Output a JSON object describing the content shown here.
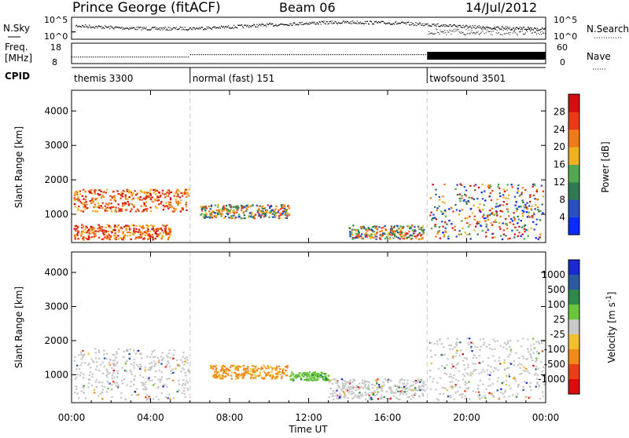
{
  "header": {
    "station": "Prince George (fitACF)",
    "beam": "Beam 06",
    "date": "14/Jul/2012"
  },
  "panels": {
    "nsky": {
      "label": "N.Sky",
      "right_label": "N.Search",
      "ticks_left": [
        "10^5",
        "10^0"
      ],
      "ticks_right": [
        "10^5",
        "10^0"
      ]
    },
    "freq": {
      "label": "Freq.",
      "unit": "[MHz]",
      "right_label": "Nave",
      "ticks_left": [
        "18",
        "8"
      ],
      "ticks_right": [
        "60",
        "0"
      ]
    },
    "cpid": {
      "label": "CPID",
      "modes": [
        {
          "name": "themis 3300",
          "start_hour": 0,
          "end_hour": 6
        },
        {
          "name": "normal (fast) 151",
          "start_hour": 6,
          "end_hour": 18
        },
        {
          "name": "twofsound 3501",
          "start_hour": 18,
          "end_hour": 24
        }
      ]
    }
  },
  "chart_data": [
    {
      "type": "heatmap",
      "title": "",
      "ylabel": "Slant Range [km]",
      "ylim": [
        180,
        4600
      ],
      "yticks": [
        1000,
        2000,
        3000,
        4000
      ],
      "xlabel": "Time UT",
      "xlim_hours": [
        0,
        24
      ],
      "xtick_labels": [
        "00:00",
        "04:00",
        "08:00",
        "12:00",
        "16:00",
        "20:00",
        "00:00"
      ],
      "colorbar": {
        "label": "Power [dB]",
        "ticks": [
          4,
          8,
          12,
          16,
          20,
          24,
          28
        ],
        "colors": [
          "#0a2cff",
          "#2a4fc4",
          "#2f7a52",
          "#52a84e",
          "#f0b020",
          "#f07a18",
          "#e83a14",
          "#d01010"
        ]
      },
      "regions": [
        {
          "t0": 0.1,
          "t1": 5.9,
          "r0": 1100,
          "r1": 1750,
          "level": "high"
        },
        {
          "t0": 0.1,
          "t1": 5.0,
          "r0": 280,
          "r1": 720,
          "level": "high"
        },
        {
          "t0": 6.5,
          "t1": 11.0,
          "r0": 900,
          "r1": 1300,
          "level": "mid"
        },
        {
          "t0": 14.0,
          "t1": 17.8,
          "r0": 300,
          "r1": 700,
          "level": "mid"
        },
        {
          "t0": 18.1,
          "t1": 23.9,
          "r0": 300,
          "r1": 1900,
          "level": "mixed"
        }
      ]
    },
    {
      "type": "heatmap",
      "title": "",
      "ylabel": "Slant Range [km]",
      "ylim": [
        180,
        4600
      ],
      "yticks": [
        1000,
        2000,
        3000,
        4000
      ],
      "xlabel": "Time UT",
      "xlim_hours": [
        0,
        24
      ],
      "xtick_labels": [
        "00:00",
        "04:00",
        "08:00",
        "12:00",
        "16:00",
        "20:00",
        "00:00"
      ],
      "colorbar": {
        "label": "Velocity [m s^-1]",
        "ticks": [
          "1000",
          "500",
          "100",
          "25",
          "-25",
          "-100",
          "-500",
          "-1000"
        ],
        "colors": [
          "#1a2ad0",
          "#2a5aa0",
          "#2e8a4a",
          "#6ac63a",
          "#c8c8c8",
          "#f0c030",
          "#f08a18",
          "#e84014",
          "#d80c0c"
        ]
      },
      "regions": [
        {
          "t0": 0.1,
          "t1": 5.9,
          "r0": 280,
          "r1": 1800,
          "level": "low"
        },
        {
          "t0": 7.0,
          "t1": 11.0,
          "r0": 900,
          "r1": 1300,
          "level": "negative"
        },
        {
          "t0": 11.0,
          "t1": 13.0,
          "r0": 850,
          "r1": 1100,
          "level": "positive"
        },
        {
          "t0": 13.0,
          "t1": 17.9,
          "r0": 300,
          "r1": 900,
          "level": "low"
        },
        {
          "t0": 18.1,
          "t1": 23.9,
          "r0": 280,
          "r1": 2100,
          "level": "low"
        }
      ]
    }
  ]
}
